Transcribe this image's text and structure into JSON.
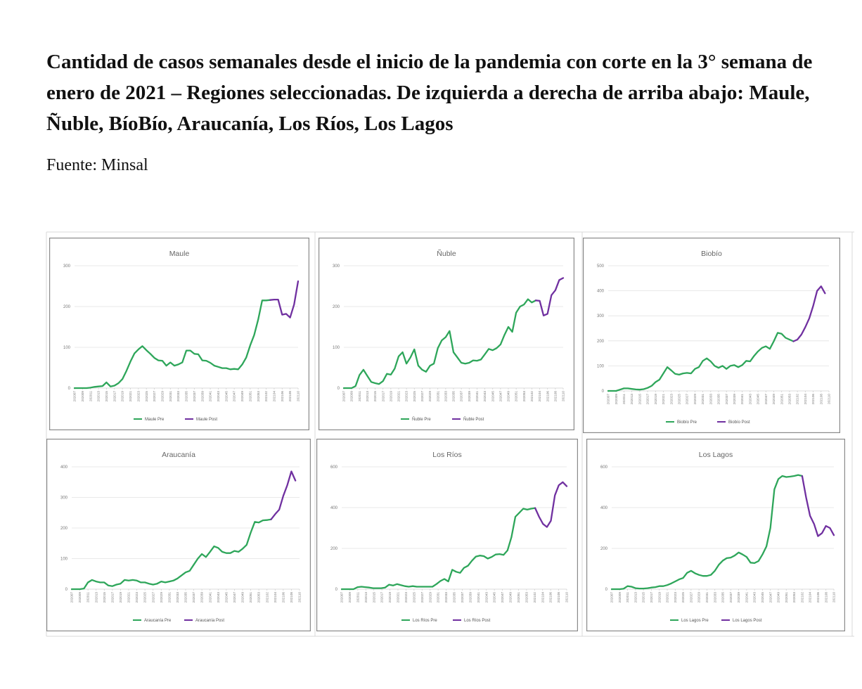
{
  "header": {
    "title": "Cantidad de casos semanales desde el inicio de la pandemia con corte en la 3° semana de enero de 2021 – Regiones seleccionadas. De izquierda a derecha de arriba abajo: Maule, Ñuble, BíoBío, Araucanía, Los Ríos, Los Lagos",
    "source": "Fuente: Minsal"
  },
  "colors": {
    "pre": "#2ea65a",
    "post": "#7030a0"
  },
  "chart_data": [
    {
      "type": "line",
      "title": "Maule",
      "ylim": [
        0,
        300
      ],
      "yticks": [
        0,
        100,
        200,
        300
      ],
      "xticks": [
        "202007",
        "202009",
        "202011",
        "202013",
        "202015",
        "202017",
        "202019",
        "202021",
        "202023",
        "202025",
        "202027",
        "202029",
        "202031",
        "202033",
        "202035",
        "202037",
        "202039",
        "202041",
        "202043",
        "202045",
        "202047",
        "202049",
        "202051",
        "202053",
        "202102",
        "202104",
        "202106",
        "202108",
        "202110"
      ],
      "grid": true,
      "legend_position": "bottom",
      "series": [
        {
          "name": "Maule Pre",
          "x": [
            0,
            1,
            2,
            3,
            4,
            5,
            6,
            7,
            8,
            9,
            10,
            11,
            12,
            13,
            14,
            15,
            16,
            17,
            18,
            19,
            20,
            21,
            22,
            23,
            24,
            25,
            26,
            27,
            28,
            29,
            30,
            31,
            32,
            33,
            34,
            35,
            36,
            37,
            38,
            39,
            40,
            41,
            42,
            43,
            44,
            45,
            46,
            47,
            48,
            49
          ],
          "values": [
            0,
            0,
            0,
            0,
            1,
            3,
            4,
            5,
            14,
            4,
            6,
            12,
            22,
            42,
            65,
            85,
            95,
            103,
            93,
            84,
            74,
            68,
            67,
            55,
            63,
            55,
            58,
            63,
            92,
            92,
            84,
            83,
            68,
            67,
            62,
            55,
            52,
            49,
            49,
            46,
            47,
            46,
            58,
            75,
            105,
            130,
            168,
            215,
            215,
            216
          ]
        },
        {
          "name": "Maule Post",
          "x": [
            49,
            50,
            51,
            52,
            53,
            54,
            55,
            56
          ],
          "values": [
            216,
            217,
            217,
            180,
            182,
            173,
            205,
            262
          ]
        }
      ]
    },
    {
      "type": "line",
      "title": "Ñuble",
      "ylim": [
        0,
        300
      ],
      "yticks": [
        0,
        100,
        200,
        300
      ],
      "xticks": [
        "202007",
        "202009",
        "202011",
        "202013",
        "202015",
        "202017",
        "202019",
        "202021",
        "202023",
        "202025",
        "202027",
        "202029",
        "202031",
        "202033",
        "202035",
        "202037",
        "202039",
        "202041",
        "202043",
        "202045",
        "202047",
        "202049",
        "202051",
        "202053",
        "202102",
        "202104",
        "202106",
        "202108",
        "202110"
      ],
      "grid": true,
      "legend_position": "bottom",
      "series": [
        {
          "name": "Ñuble Pre",
          "x": [
            0,
            1,
            2,
            3,
            4,
            5,
            6,
            7,
            8,
            9,
            10,
            11,
            12,
            13,
            14,
            15,
            16,
            17,
            18,
            19,
            20,
            21,
            22,
            23,
            24,
            25,
            26,
            27,
            28,
            29,
            30,
            31,
            32,
            33,
            34,
            35,
            36,
            37,
            38,
            39,
            40,
            41,
            42,
            43,
            44,
            45,
            46,
            47,
            48,
            49
          ],
          "values": [
            0,
            0,
            0,
            5,
            32,
            45,
            30,
            15,
            12,
            10,
            17,
            35,
            33,
            48,
            78,
            88,
            60,
            75,
            95,
            55,
            45,
            40,
            55,
            60,
            98,
            117,
            125,
            140,
            88,
            75,
            62,
            60,
            62,
            68,
            67,
            70,
            83,
            96,
            93,
            98,
            107,
            130,
            150,
            138,
            185,
            200,
            205,
            218,
            210,
            215
          ]
        },
        {
          "name": "Ñuble Post",
          "x": [
            49,
            50,
            51,
            52,
            53,
            54,
            55,
            56
          ],
          "values": [
            215,
            214,
            178,
            182,
            228,
            240,
            265,
            270
          ]
        }
      ]
    },
    {
      "type": "line",
      "title": "Biobío",
      "ylim": [
        0,
        500
      ],
      "yticks": [
        0,
        100,
        200,
        300,
        400,
        500
      ],
      "xticks": [
        "202007",
        "202009",
        "202011",
        "202013",
        "202015",
        "202017",
        "202019",
        "202021",
        "202023",
        "202025",
        "202027",
        "202029",
        "202031",
        "202033",
        "202035",
        "202037",
        "202039",
        "202041",
        "202043",
        "202045",
        "202047",
        "202049",
        "202051",
        "202053",
        "202102",
        "202104",
        "202106",
        "202108",
        "202110"
      ],
      "grid": true,
      "legend_position": "bottom",
      "series": [
        {
          "name": "Biobío Pre",
          "x": [
            0,
            1,
            2,
            3,
            4,
            5,
            6,
            7,
            8,
            9,
            10,
            11,
            12,
            13,
            14,
            15,
            16,
            17,
            18,
            19,
            20,
            21,
            22,
            23,
            24,
            25,
            26,
            27,
            28,
            29,
            30,
            31,
            32,
            33,
            34,
            35,
            36,
            37,
            38,
            39,
            40,
            41,
            42,
            43,
            44,
            45,
            46,
            47
          ],
          "values": [
            0,
            0,
            0,
            5,
            10,
            10,
            8,
            6,
            5,
            7,
            12,
            20,
            35,
            45,
            70,
            95,
            82,
            68,
            65,
            70,
            72,
            70,
            88,
            95,
            120,
            130,
            118,
            100,
            92,
            100,
            88,
            100,
            103,
            95,
            103,
            120,
            118,
            140,
            158,
            172,
            178,
            168,
            198,
            232,
            228,
            212,
            205,
            198
          ]
        },
        {
          "name": "Biobío Post",
          "x": [
            47,
            48,
            49,
            50,
            51,
            52,
            53,
            54,
            55
          ],
          "values": [
            198,
            205,
            225,
            255,
            290,
            340,
            400,
            418,
            390
          ]
        }
      ]
    },
    {
      "type": "line",
      "title": "Araucanía",
      "ylim": [
        0,
        400
      ],
      "yticks": [
        0,
        100,
        200,
        300,
        400
      ],
      "xticks": [
        "202007",
        "202009",
        "202011",
        "202013",
        "202015",
        "202017",
        "202019",
        "202021",
        "202023",
        "202025",
        "202027",
        "202029",
        "202031",
        "202033",
        "202035",
        "202037",
        "202039",
        "202041",
        "202043",
        "202045",
        "202047",
        "202049",
        "202051",
        "202053",
        "202102",
        "202104",
        "202106",
        "202108",
        "202110"
      ],
      "grid": true,
      "legend_position": "bottom",
      "series": [
        {
          "name": "Araucanía Pre",
          "x": [
            0,
            1,
            2,
            3,
            4,
            5,
            6,
            7,
            8,
            9,
            10,
            11,
            12,
            13,
            14,
            15,
            16,
            17,
            18,
            19,
            20,
            21,
            22,
            23,
            24,
            25,
            26,
            27,
            28,
            29,
            30,
            31,
            32,
            33,
            34,
            35,
            36,
            37,
            38,
            39,
            40,
            41,
            42,
            43,
            44,
            45,
            46,
            47,
            48,
            49
          ],
          "values": [
            0,
            0,
            0,
            2,
            22,
            30,
            25,
            22,
            22,
            12,
            10,
            15,
            18,
            30,
            28,
            30,
            28,
            22,
            22,
            18,
            15,
            18,
            25,
            22,
            25,
            28,
            35,
            45,
            55,
            60,
            80,
            100,
            115,
            105,
            122,
            140,
            135,
            122,
            118,
            118,
            125,
            122,
            132,
            145,
            185,
            220,
            218,
            225,
            226,
            228
          ]
        },
        {
          "name": "Araucanía Post",
          "x": [
            49,
            50,
            51,
            52,
            53,
            54,
            55
          ],
          "values": [
            228,
            245,
            260,
            305,
            340,
            385,
            355
          ]
        }
      ]
    },
    {
      "type": "line",
      "title": "Los Ríos",
      "ylim": [
        0,
        600
      ],
      "yticks": [
        0,
        200,
        400,
        600
      ],
      "xticks": [
        "202007",
        "202009",
        "202011",
        "202013",
        "202015",
        "202017",
        "202019",
        "202021",
        "202023",
        "202025",
        "202027",
        "202029",
        "202031",
        "202033",
        "202035",
        "202037",
        "202039",
        "202041",
        "202043",
        "202045",
        "202047",
        "202049",
        "202051",
        "202053",
        "202102",
        "202104",
        "202106",
        "202108",
        "202110"
      ],
      "grid": true,
      "legend_position": "bottom",
      "series": [
        {
          "name": "Los Ríos Pre",
          "x": [
            0,
            1,
            2,
            3,
            4,
            5,
            6,
            7,
            8,
            9,
            10,
            11,
            12,
            13,
            14,
            15,
            16,
            17,
            18,
            19,
            20,
            21,
            22,
            23,
            24,
            25,
            26,
            27,
            28,
            29,
            30,
            31,
            32,
            33,
            34,
            35,
            36,
            37,
            38,
            39,
            40,
            41,
            42,
            43,
            44,
            45,
            46,
            47,
            48,
            49
          ],
          "values": [
            0,
            0,
            0,
            0,
            10,
            12,
            10,
            8,
            5,
            5,
            5,
            8,
            22,
            18,
            25,
            20,
            15,
            12,
            15,
            12,
            12,
            12,
            12,
            12,
            25,
            40,
            50,
            38,
            95,
            85,
            80,
            105,
            115,
            140,
            160,
            165,
            162,
            150,
            158,
            170,
            172,
            168,
            190,
            255,
            355,
            375,
            395,
            390,
            395,
            398
          ]
        },
        {
          "name": "Los Ríos Post",
          "x": [
            49,
            50,
            51,
            52,
            53,
            54,
            55,
            56,
            57
          ],
          "values": [
            398,
            355,
            320,
            305,
            335,
            460,
            510,
            525,
            505
          ]
        }
      ]
    },
    {
      "type": "line",
      "title": "Los Lagos",
      "ylim": [
        0,
        600
      ],
      "yticks": [
        0,
        200,
        400,
        600
      ],
      "xticks": [
        "202007",
        "202009",
        "202011",
        "202013",
        "202015",
        "202017",
        "202019",
        "202021",
        "202023",
        "202025",
        "202027",
        "202029",
        "202031",
        "202033",
        "202035",
        "202037",
        "202039",
        "202041",
        "202043",
        "202045",
        "202047",
        "202049",
        "202051",
        "202053",
        "202102",
        "202104",
        "202106",
        "202108",
        "202110"
      ],
      "grid": true,
      "legend_position": "bottom",
      "series": [
        {
          "name": "Los Lagos Pre",
          "x": [
            0,
            1,
            2,
            3,
            4,
            5,
            6,
            7,
            8,
            9,
            10,
            11,
            12,
            13,
            14,
            15,
            16,
            17,
            18,
            19,
            20,
            21,
            22,
            23,
            24,
            25,
            26,
            27,
            28,
            29,
            30,
            31,
            32,
            33,
            34,
            35,
            36,
            37,
            38,
            39,
            40,
            41,
            42,
            43,
            44,
            45,
            46,
            47,
            48
          ],
          "values": [
            0,
            0,
            0,
            2,
            15,
            12,
            5,
            3,
            3,
            5,
            8,
            10,
            15,
            15,
            20,
            28,
            38,
            48,
            55,
            80,
            90,
            78,
            70,
            65,
            65,
            70,
            90,
            120,
            140,
            152,
            155,
            165,
            180,
            170,
            158,
            130,
            128,
            138,
            170,
            210,
            300,
            490,
            540,
            555,
            550,
            552,
            555,
            560,
            555
          ]
        },
        {
          "name": "Los Lagos Post",
          "x": [
            48,
            49,
            50,
            51,
            52,
            53,
            54,
            55,
            56
          ],
          "values": [
            555,
            450,
            360,
            320,
            260,
            275,
            310,
            300,
            265
          ]
        }
      ]
    }
  ]
}
